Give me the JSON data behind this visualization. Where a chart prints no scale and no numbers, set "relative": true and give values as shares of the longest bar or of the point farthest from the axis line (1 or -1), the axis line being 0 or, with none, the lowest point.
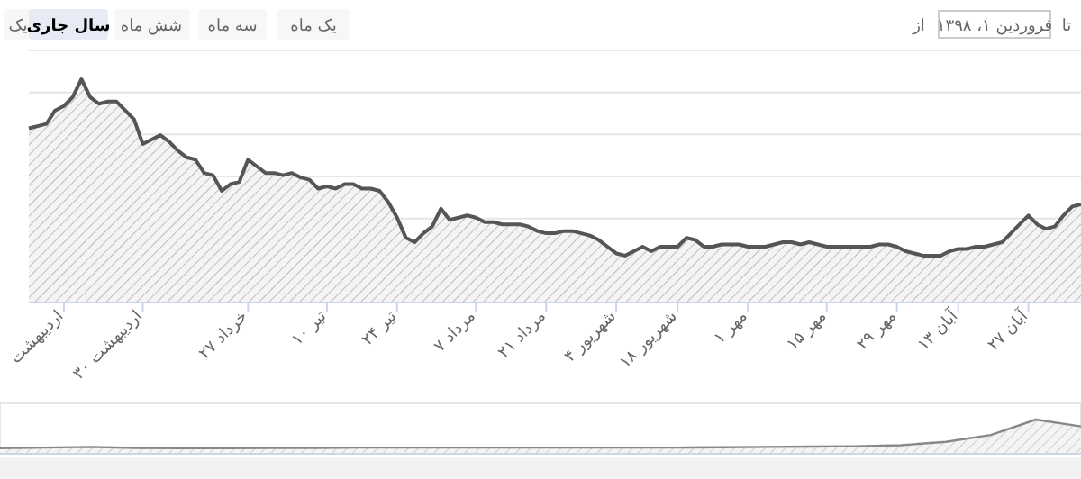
{
  "chart_data": [
    {
      "type": "area",
      "relative": true,
      "color": "#555555",
      "grid": true,
      "categories": [
        null,
        null,
        null,
        null,
        "اردیبهشت",
        null,
        null,
        null,
        null,
        null,
        null,
        null,
        null,
        "اردیبهشت ۳۰",
        null,
        null,
        null,
        null,
        null,
        null,
        null,
        null,
        null,
        null,
        null,
        "خرداد ۲۷",
        null,
        null,
        null,
        null,
        null,
        null,
        null,
        null,
        "تیر ۱۰",
        null,
        null,
        null,
        null,
        null,
        null,
        null,
        "تیر ۲۴",
        null,
        null,
        null,
        null,
        null,
        null,
        null,
        null,
        "مرداد ۷",
        null,
        null,
        null,
        null,
        null,
        null,
        null,
        "مرداد ۲۱",
        null,
        null,
        null,
        null,
        null,
        null,
        null,
        "شهریور ۴",
        null,
        null,
        null,
        null,
        null,
        null,
        "شهریور ۱۸",
        null,
        null,
        null,
        null,
        null,
        null,
        null,
        "مهر ۱",
        null,
        null,
        null,
        null,
        null,
        null,
        null,
        null,
        "مهر ۱۵",
        null,
        null,
        null,
        null,
        null,
        null,
        null,
        "مهر ۲۹",
        null,
        null,
        null,
        null,
        null,
        null,
        "آبان ۱۳",
        null,
        null,
        null,
        null,
        null,
        null,
        null,
        "آبان ۲۷",
        null,
        null,
        null,
        null,
        null,
        null
      ],
      "values": [
        0.78,
        0.79,
        0.8,
        0.86,
        0.88,
        0.92,
        1.0,
        0.92,
        0.89,
        0.9,
        0.9,
        0.86,
        0.82,
        0.71,
        0.73,
        0.75,
        0.72,
        0.68,
        0.65,
        0.64,
        0.58,
        0.57,
        0.5,
        0.53,
        0.54,
        0.64,
        0.61,
        0.58,
        0.58,
        0.57,
        0.58,
        0.56,
        0.55,
        0.51,
        0.52,
        0.51,
        0.53,
        0.53,
        0.51,
        0.51,
        0.5,
        0.45,
        0.38,
        0.29,
        0.27,
        0.31,
        0.34,
        0.42,
        0.37,
        0.38,
        0.39,
        0.38,
        0.36,
        0.36,
        0.35,
        0.35,
        0.35,
        0.34,
        0.32,
        0.31,
        0.31,
        0.32,
        0.32,
        0.31,
        0.3,
        0.28,
        0.25,
        0.22,
        0.21,
        0.23,
        0.25,
        0.23,
        0.25,
        0.25,
        0.25,
        0.29,
        0.28,
        0.25,
        0.25,
        0.26,
        0.26,
        0.26,
        0.25,
        0.25,
        0.25,
        0.26,
        0.27,
        0.27,
        0.26,
        0.27,
        0.26,
        0.25,
        0.25,
        0.25,
        0.25,
        0.25,
        0.25,
        0.26,
        0.26,
        0.25,
        0.23,
        0.22,
        0.21,
        0.21,
        0.21,
        0.23,
        0.24,
        0.24,
        0.25,
        0.25,
        0.26,
        0.27,
        0.31,
        0.35,
        0.39,
        0.35,
        0.33,
        0.34,
        0.39,
        0.43,
        0.44
      ],
      "annotations": [
        "یک",
        "سال جاری",
        "شش ماه",
        "سه ماه",
        "یک ماه",
        "از",
        "فروردین ۱، ۱۳۹۸",
        "تا"
      ]
    },
    {
      "type": "area",
      "relative": true,
      "color": "#888888",
      "categories": [
        null,
        null,
        null,
        null,
        null,
        null,
        null,
        null,
        null,
        null,
        null,
        null,
        null,
        null,
        null,
        null,
        null,
        null,
        null,
        null,
        null,
        null,
        null,
        null,
        null
      ],
      "values": [
        0.16,
        0.18,
        0.2,
        0.17,
        0.16,
        0.16,
        0.17,
        0.17,
        0.18,
        0.18,
        0.18,
        0.18,
        0.18,
        0.18,
        0.18,
        0.18,
        0.19,
        0.2,
        0.21,
        0.22,
        0.25,
        0.35,
        0.55,
        1.0,
        0.8
      ]
    }
  ]
}
